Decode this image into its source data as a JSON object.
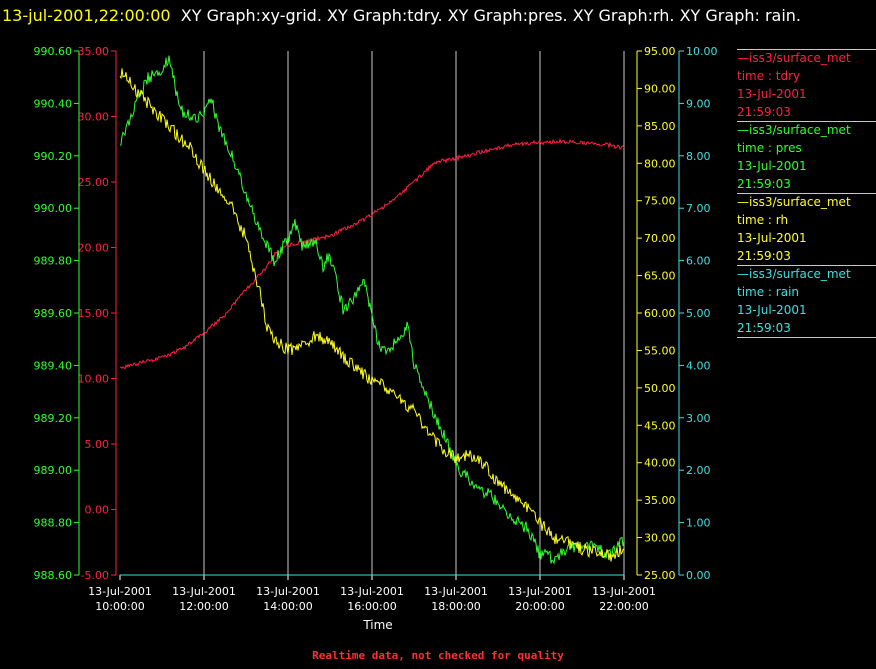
{
  "title": {
    "date": "13-jul-2001,22:00:00",
    "text": "XY Graph:xy-grid.  XY Graph:tdry.  XY Graph:pres.  XY Graph:rh.  XY Graph: rain."
  },
  "footer": "Realtime data, not checked for quality",
  "colors": {
    "tdry": "#ff2040",
    "pres": "#30ff30",
    "rh": "#ffff20",
    "rain": "#40e0e0",
    "grid": "#c8c8c8"
  },
  "legend": [
    {
      "series": "tdry",
      "color": "#ff2040",
      "lines": [
        "—iss3/surface_met",
        "time : tdry",
        "13-Jul-2001",
        "21:59:03"
      ]
    },
    {
      "series": "pres",
      "color": "#30ff30",
      "lines": [
        "—iss3/surface_met",
        "time : pres",
        "13-Jul-2001",
        "21:59:03"
      ]
    },
    {
      "series": "rh",
      "color": "#ffff20",
      "lines": [
        "—iss3/surface_met",
        "time : rh",
        "13-Jul-2001",
        "21:59:03"
      ]
    },
    {
      "series": "rain",
      "color": "#40e0e0",
      "lines": [
        "—iss3/surface_met",
        "time : rain",
        "13-Jul-2001",
        "21:59:03"
      ]
    }
  ],
  "chart_data": {
    "type": "line",
    "xlabel": "Time",
    "x_ticks": [
      {
        "date": "13-Jul-2001",
        "time": "10:00:00"
      },
      {
        "date": "13-Jul-2001",
        "time": "12:00:00"
      },
      {
        "date": "13-Jul-2001",
        "time": "14:00:00"
      },
      {
        "date": "13-Jul-2001",
        "time": "16:00:00"
      },
      {
        "date": "13-Jul-2001",
        "time": "18:00:00"
      },
      {
        "date": "13-Jul-2001",
        "time": "20:00:00"
      },
      {
        "date": "13-Jul-2001",
        "time": "22:00:00"
      }
    ],
    "xlim": [
      "2001-07-13T10:00",
      "2001-07-13T22:00"
    ],
    "grid": true,
    "axes": {
      "tdry": {
        "side": "left",
        "ylim": [
          -5,
          35
        ],
        "ticks": [
          "-5.00",
          "0.00",
          "5.00",
          "10.00",
          "15.00",
          "20.00",
          "25.00",
          "30.00",
          "35.00"
        ]
      },
      "pres": {
        "side": "left",
        "ylim": [
          988.6,
          990.6
        ],
        "ticks": [
          "988.60",
          "988.80",
          "989.00",
          "989.20",
          "989.40",
          "989.60",
          "989.80",
          "990.00",
          "990.20",
          "990.40",
          "990.60"
        ]
      },
      "rh": {
        "side": "right",
        "ylim": [
          25,
          95
        ],
        "ticks": [
          "25.00",
          "30.00",
          "35.00",
          "40.00",
          "45.00",
          "50.00",
          "55.00",
          "60.00",
          "65.00",
          "70.00",
          "75.00",
          "80.00",
          "85.00",
          "90.00",
          "95.00"
        ]
      },
      "rain": {
        "side": "right",
        "ylim": [
          0,
          10
        ],
        "ticks": [
          "0.00",
          "1.00",
          "2.00",
          "3.00",
          "4.00",
          "5.00",
          "6.00",
          "7.00",
          "8.00",
          "9.00",
          "10.00"
        ]
      }
    },
    "series": [
      {
        "name": "tdry",
        "axis": "tdry",
        "x": [
          "10:00",
          "10:30",
          "11:00",
          "11:30",
          "12:00",
          "12:30",
          "13:00",
          "13:30",
          "13:40",
          "14:00",
          "14:30",
          "15:00",
          "15:30",
          "16:00",
          "16:30",
          "17:00",
          "17:30",
          "18:00",
          "18:30",
          "19:00",
          "19:30",
          "20:00",
          "20:30",
          "21:00",
          "21:30",
          "22:00"
        ],
        "values": [
          10.8,
          11.2,
          11.6,
          12.3,
          13.5,
          14.8,
          16.8,
          18.5,
          19.4,
          20.2,
          20.5,
          20.9,
          21.6,
          22.5,
          23.6,
          25.0,
          26.5,
          26.8,
          27.2,
          27.6,
          27.9,
          28.0,
          28.1,
          28.0,
          27.9,
          27.6
        ]
      },
      {
        "name": "pres",
        "axis": "pres",
        "x": [
          "10:00",
          "10:10",
          "10:20",
          "10:40",
          "11:00",
          "11:10",
          "11:20",
          "11:30",
          "11:50",
          "12:10",
          "12:20",
          "12:40",
          "13:00",
          "13:20",
          "13:40",
          "14:00",
          "14:10",
          "14:20",
          "14:40",
          "14:50",
          "15:00",
          "15:20",
          "15:40",
          "15:50",
          "16:00",
          "16:10",
          "16:20",
          "16:40",
          "16:50",
          "17:00",
          "17:20",
          "17:30",
          "17:40",
          "18:00",
          "18:20",
          "18:40",
          "19:00",
          "19:20",
          "19:40",
          "20:00",
          "20:20",
          "20:40",
          "21:00",
          "21:20",
          "21:40",
          "22:00"
        ],
        "values": [
          990.25,
          990.3,
          990.38,
          990.5,
          990.52,
          990.58,
          990.45,
          990.37,
          990.33,
          990.42,
          990.32,
          990.2,
          990.05,
          989.92,
          989.8,
          989.88,
          989.95,
          989.85,
          989.87,
          989.78,
          989.82,
          989.6,
          989.68,
          989.72,
          989.58,
          989.48,
          989.45,
          989.5,
          989.56,
          989.4,
          989.28,
          989.2,
          989.15,
          989.02,
          988.96,
          988.92,
          988.88,
          988.82,
          988.78,
          988.68,
          988.66,
          988.7,
          988.72,
          988.7,
          988.68,
          988.73
        ]
      },
      {
        "name": "rh",
        "axis": "rh",
        "x": [
          "10:00",
          "10:10",
          "10:20",
          "10:40",
          "11:00",
          "11:20",
          "11:40",
          "12:00",
          "12:20",
          "12:40",
          "13:00",
          "13:10",
          "13:20",
          "13:30",
          "13:40",
          "14:00",
          "14:20",
          "14:40",
          "15:00",
          "15:20",
          "15:40",
          "16:00",
          "16:20",
          "16:40",
          "17:00",
          "17:20",
          "17:40",
          "18:00",
          "18:20",
          "18:40",
          "19:00",
          "19:20",
          "19:40",
          "20:00",
          "20:20",
          "20:40",
          "21:00",
          "21:20",
          "21:40",
          "22:00"
        ],
        "values": [
          92.0,
          91.5,
          90.0,
          88.0,
          86.0,
          84.0,
          82.0,
          79.0,
          76.5,
          74.0,
          70.0,
          66.0,
          63.0,
          58.0,
          56.5,
          55.0,
          55.5,
          57.0,
          56.0,
          54.0,
          52.5,
          51.0,
          50.0,
          48.5,
          47.0,
          44.0,
          42.0,
          40.5,
          41.0,
          40.0,
          37.0,
          36.0,
          34.0,
          32.0,
          30.0,
          29.5,
          28.5,
          28.0,
          27.5,
          28.5
        ]
      },
      {
        "name": "rain",
        "axis": "rain",
        "x": [
          "10:00",
          "22:00"
        ],
        "values": [
          0.0,
          0.0
        ]
      }
    ]
  }
}
